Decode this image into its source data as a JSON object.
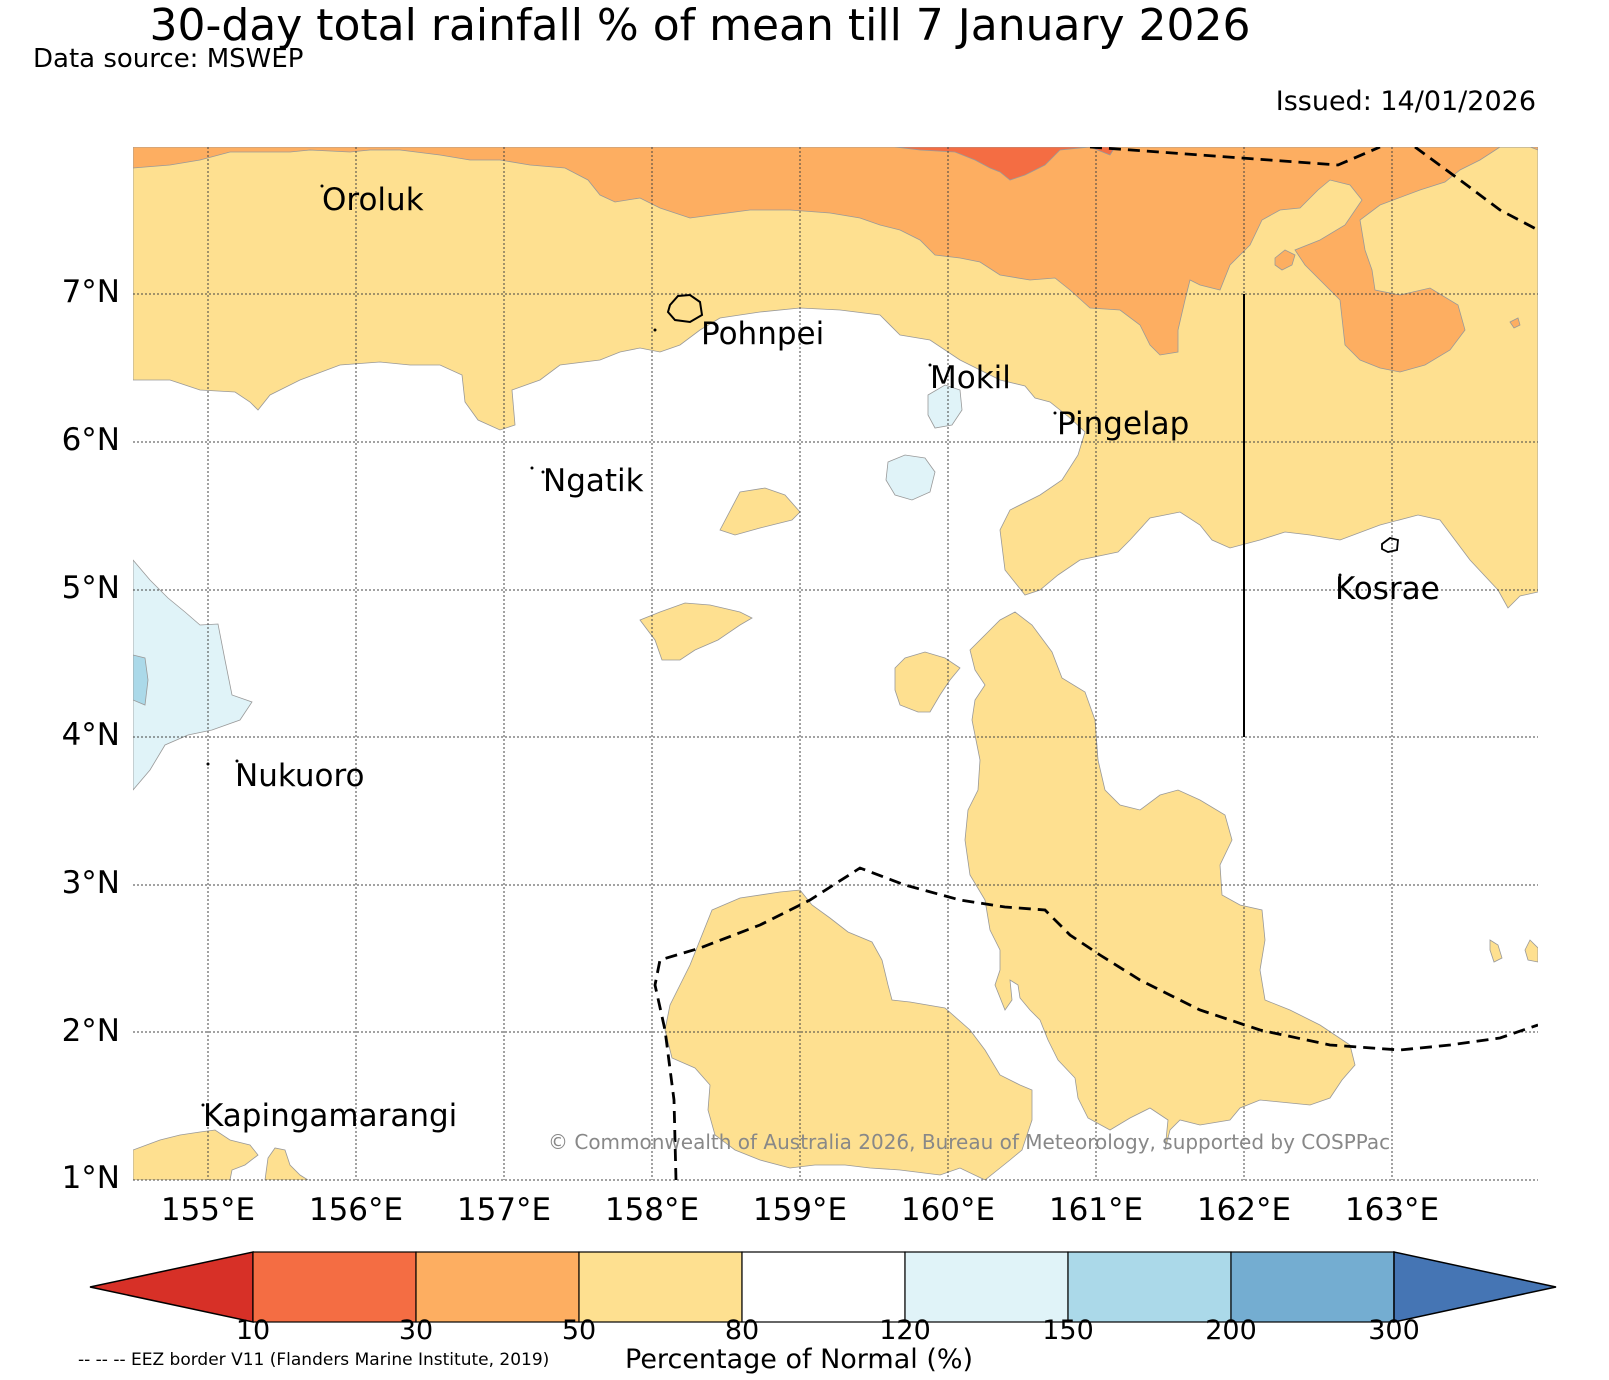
{
  "title": "30-day total rainfall % of mean till 7 January 2026",
  "data_source": "Data source: MSWEP",
  "issued": "Issued: 14/01/2026",
  "copyright": "© Commonwealth of Australia 2026, Bureau of Meteorology, supported by COSPPac",
  "map": {
    "lon_range": [
      154.5,
      164.0
    ],
    "lat_range": [
      1.0,
      8.0
    ],
    "lat_labels": [
      "1°N",
      "2°N",
      "3°N",
      "4°N",
      "5°N",
      "6°N",
      "7°N"
    ],
    "lon_labels": [
      "155°E",
      "156°E",
      "157°E",
      "158°E",
      "159°E",
      "160°E",
      "161°E",
      "162°E",
      "163°E"
    ],
    "places": [
      {
        "id": "oroluk",
        "name": "Oroluk"
      },
      {
        "id": "pohnpei",
        "name": "Pohnpei"
      },
      {
        "id": "mokil",
        "name": "Mokil"
      },
      {
        "id": "pingelap",
        "name": "Pingelap"
      },
      {
        "id": "ngatik",
        "name": "Ngatik"
      },
      {
        "id": "kosrae",
        "name": "Kosrae"
      },
      {
        "id": "nukuoro",
        "name": "Nukuoro"
      },
      {
        "id": "kapingamarangi",
        "name": "Kapingamarangi"
      }
    ]
  },
  "colorbar": {
    "title": "Percentage of Normal (%)",
    "ticks": [
      "10",
      "30",
      "50",
      "80",
      "120",
      "150",
      "200",
      "300"
    ],
    "colors": {
      "below_10": "#d73027",
      "10_30": "#f46d43",
      "30_50": "#fdae61",
      "50_80": "#fee090",
      "80_120": "#ffffff",
      "120_150": "#e0f3f8",
      "150_200": "#abd9e9",
      "200_300": "#74add1",
      "above_300": "#4575b4"
    }
  },
  "eez_legend": "-- -- -- EEZ border V11 (Flanders Marine Institute, 2019)"
}
